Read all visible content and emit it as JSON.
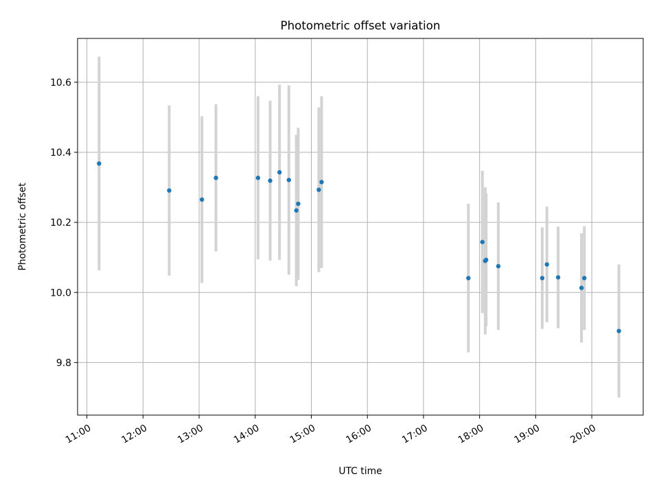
{
  "chart_data": {
    "type": "scatter",
    "title": "Photometric offset variation",
    "xlabel": "UTC time",
    "ylabel": "Photometric offset",
    "x_unit": "UTC time of day (HH:MM)",
    "xlim": [
      "10:50",
      "20:55"
    ],
    "ylim": [
      9.65,
      10.725
    ],
    "x_ticks": [
      "11:00",
      "12:00",
      "13:00",
      "14:00",
      "15:00",
      "16:00",
      "17:00",
      "18:00",
      "19:00",
      "20:00"
    ],
    "y_ticks": [
      9.8,
      10.0,
      10.2,
      10.4,
      10.6
    ],
    "y_tick_labels": [
      "9.8",
      "10.0",
      "10.2",
      "10.4",
      "10.6"
    ],
    "grid": true,
    "marker_color": "#1f77b4",
    "errorbar_color": "#d3d3d3",
    "points": [
      {
        "x": "11:13",
        "y": 10.368,
        "err": 0.305
      },
      {
        "x": "12:28",
        "y": 10.291,
        "err": 0.243
      },
      {
        "x": "13:03",
        "y": 10.265,
        "err": 0.238
      },
      {
        "x": "13:18",
        "y": 10.327,
        "err": 0.21
      },
      {
        "x": "14:03",
        "y": 10.327,
        "err": 0.233
      },
      {
        "x": "14:16",
        "y": 10.319,
        "err": 0.228
      },
      {
        "x": "14:26",
        "y": 10.343,
        "err": 0.25
      },
      {
        "x": "14:36",
        "y": 10.321,
        "err": 0.27
      },
      {
        "x": "14:44",
        "y": 10.234,
        "err": 0.216
      },
      {
        "x": "14:46",
        "y": 10.253,
        "err": 0.217
      },
      {
        "x": "15:08",
        "y": 10.293,
        "err": 0.235
      },
      {
        "x": "15:11",
        "y": 10.315,
        "err": 0.245
      },
      {
        "x": "17:48",
        "y": 10.041,
        "err": 0.212
      },
      {
        "x": "18:03",
        "y": 10.144,
        "err": 0.203
      },
      {
        "x": "18:06",
        "y": 10.09,
        "err": 0.21
      },
      {
        "x": "18:07",
        "y": 10.093,
        "err": 0.19
      },
      {
        "x": "18:20",
        "y": 10.075,
        "err": 0.182
      },
      {
        "x": "19:07",
        "y": 10.041,
        "err": 0.145
      },
      {
        "x": "19:12",
        "y": 10.08,
        "err": 0.165
      },
      {
        "x": "19:24",
        "y": 10.043,
        "err": 0.145
      },
      {
        "x": "19:49",
        "y": 10.013,
        "err": 0.156
      },
      {
        "x": "19:52",
        "y": 10.041,
        "err": 0.148
      },
      {
        "x": "20:29",
        "y": 9.89,
        "err": 0.19
      }
    ]
  }
}
